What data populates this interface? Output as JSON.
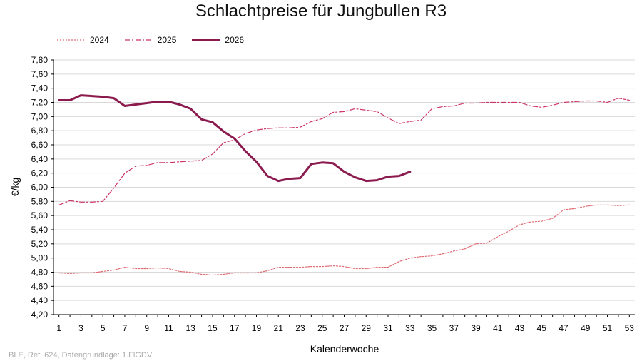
{
  "chart_data": {
    "type": "line",
    "title": "Schlachtpreise für Jungbullen R3",
    "xlabel": "Kalenderwoche",
    "ylabel": "€/kg",
    "xlim": [
      1,
      53
    ],
    "ylim": [
      4.2,
      7.8
    ],
    "x_ticks": [
      "1",
      "3",
      "5",
      "7",
      "9",
      "11",
      "13",
      "15",
      "17",
      "19",
      "21",
      "23",
      "25",
      "27",
      "29",
      "31",
      "33",
      "35",
      "37",
      "39",
      "41",
      "43",
      "45",
      "47",
      "49",
      "51",
      "53"
    ],
    "y_ticks": [
      "4,20",
      "4,40",
      "4,60",
      "4,80",
      "5,00",
      "5,20",
      "5,40",
      "5,60",
      "5,80",
      "6,00",
      "6,20",
      "6,40",
      "6,60",
      "6,80",
      "7,00",
      "7,20",
      "7,40",
      "7,60",
      "7,80"
    ],
    "grid": "horizontal",
    "legend_position": "top-left",
    "series": [
      {
        "name": "2024",
        "style": "dotted",
        "color": "#e06a72",
        "x": [
          1,
          2,
          3,
          4,
          5,
          6,
          7,
          8,
          9,
          10,
          11,
          12,
          13,
          14,
          15,
          16,
          17,
          18,
          19,
          20,
          21,
          22,
          23,
          24,
          25,
          26,
          27,
          28,
          29,
          30,
          31,
          32,
          33,
          34,
          35,
          36,
          37,
          38,
          39,
          40,
          41,
          42,
          43,
          44,
          45,
          46,
          47,
          48,
          49,
          50,
          51,
          52,
          53
        ],
        "values": [
          4.79,
          4.78,
          4.79,
          4.79,
          4.81,
          4.83,
          4.87,
          4.85,
          4.85,
          4.86,
          4.85,
          4.81,
          4.8,
          4.77,
          4.76,
          4.77,
          4.79,
          4.79,
          4.79,
          4.82,
          4.87,
          4.87,
          4.87,
          4.88,
          4.88,
          4.89,
          4.88,
          4.85,
          4.85,
          4.87,
          4.87,
          4.95,
          5.0,
          5.02,
          5.03,
          5.06,
          5.1,
          5.13,
          5.2,
          5.21,
          5.3,
          5.38,
          5.47,
          5.51,
          5.52,
          5.56,
          5.68,
          5.7,
          5.73,
          5.75,
          5.75,
          5.74,
          5.75
        ]
      },
      {
        "name": "2025",
        "style": "dash-dot",
        "color": "#cc3366",
        "x": [
          1,
          2,
          3,
          4,
          5,
          6,
          7,
          8,
          9,
          10,
          11,
          12,
          13,
          14,
          15,
          16,
          17,
          18,
          19,
          20,
          21,
          22,
          23,
          24,
          25,
          26,
          27,
          28,
          29,
          30,
          31,
          32,
          33,
          34,
          35,
          36,
          37,
          38,
          39,
          40,
          41,
          42,
          43,
          44,
          45,
          46,
          47,
          48,
          49,
          50,
          51,
          52,
          53
        ],
        "values": [
          5.75,
          5.81,
          5.79,
          5.79,
          5.8,
          5.99,
          6.2,
          6.3,
          6.31,
          6.35,
          6.35,
          6.36,
          6.37,
          6.38,
          6.47,
          6.63,
          6.67,
          6.76,
          6.81,
          6.83,
          6.84,
          6.84,
          6.85,
          6.93,
          6.97,
          7.06,
          7.07,
          7.11,
          7.09,
          7.07,
          6.98,
          6.9,
          6.93,
          6.95,
          7.11,
          7.14,
          7.15,
          7.19,
          7.19,
          7.2,
          7.2,
          7.2,
          7.2,
          7.15,
          7.13,
          7.16,
          7.2,
          7.21,
          7.22,
          7.22,
          7.2,
          7.26,
          7.23
        ]
      },
      {
        "name": "2026",
        "style": "solid",
        "color": "#8b1a4e",
        "x": [
          1,
          2,
          3,
          4,
          5,
          6,
          7,
          8,
          9,
          10,
          11,
          12,
          13,
          14,
          15,
          16,
          17,
          18,
          19,
          20,
          21,
          22,
          23,
          24,
          25,
          26,
          27,
          28,
          29,
          30,
          31,
          32,
          33
        ],
        "values": [
          7.23,
          7.23,
          7.3,
          7.29,
          7.28,
          7.26,
          7.15,
          7.17,
          7.19,
          7.21,
          7.21,
          7.17,
          7.11,
          6.96,
          6.92,
          6.79,
          6.69,
          6.51,
          6.36,
          6.16,
          6.09,
          6.12,
          6.13,
          6.33,
          6.35,
          6.34,
          6.22,
          6.14,
          6.09,
          6.1,
          6.15,
          6.16,
          6.22
        ]
      }
    ],
    "source_note": "BLE, Ref. 624, Datengrundlage: 1.FlGDV"
  }
}
